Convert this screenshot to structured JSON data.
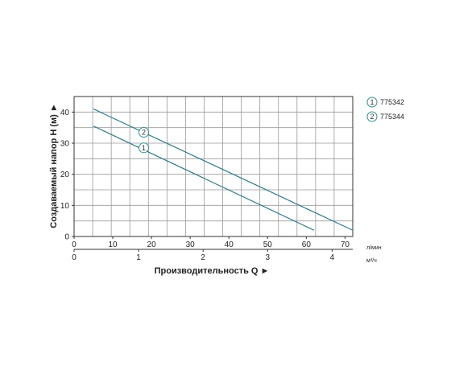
{
  "chart_data": {
    "type": "line",
    "ylabel": "Создаваемый напор H (м) ►",
    "xlabel": "Производительность Q ►",
    "x_unit_primary": "л/мин",
    "x_unit_secondary": "м³/ч",
    "xlim": [
      0,
      72
    ],
    "ylim": [
      0,
      45
    ],
    "grid": true,
    "x_ticks": [
      "0",
      "10",
      "20",
      "30",
      "40",
      "50",
      "60",
      "70"
    ],
    "x_tick_values": [
      0,
      10,
      20,
      30,
      40,
      50,
      60,
      70
    ],
    "x2_ticks": [
      "0",
      "1",
      "2",
      "3",
      "4"
    ],
    "x2_tick_values": [
      0,
      1,
      2,
      3,
      4
    ],
    "y_ticks": [
      "0",
      "10",
      "20",
      "30",
      "40"
    ],
    "y_tick_values": [
      0,
      10,
      20,
      30,
      40
    ],
    "legend_position": "top-right",
    "series": [
      {
        "marker": "1",
        "name": "775342",
        "x": [
          5,
          62
        ],
        "y": [
          35.5,
          2
        ],
        "marker_x": 18,
        "marker_y": 28.5
      },
      {
        "marker": "2",
        "name": "775344",
        "x": [
          5,
          72
        ],
        "y": [
          41,
          2
        ],
        "marker_x": 18,
        "marker_y": 33.5
      }
    ],
    "colors": {
      "line": "#2f7a8a",
      "grid": "#9a9a9a",
      "axis": "#333333",
      "marker": "#2f8f8f"
    }
  }
}
